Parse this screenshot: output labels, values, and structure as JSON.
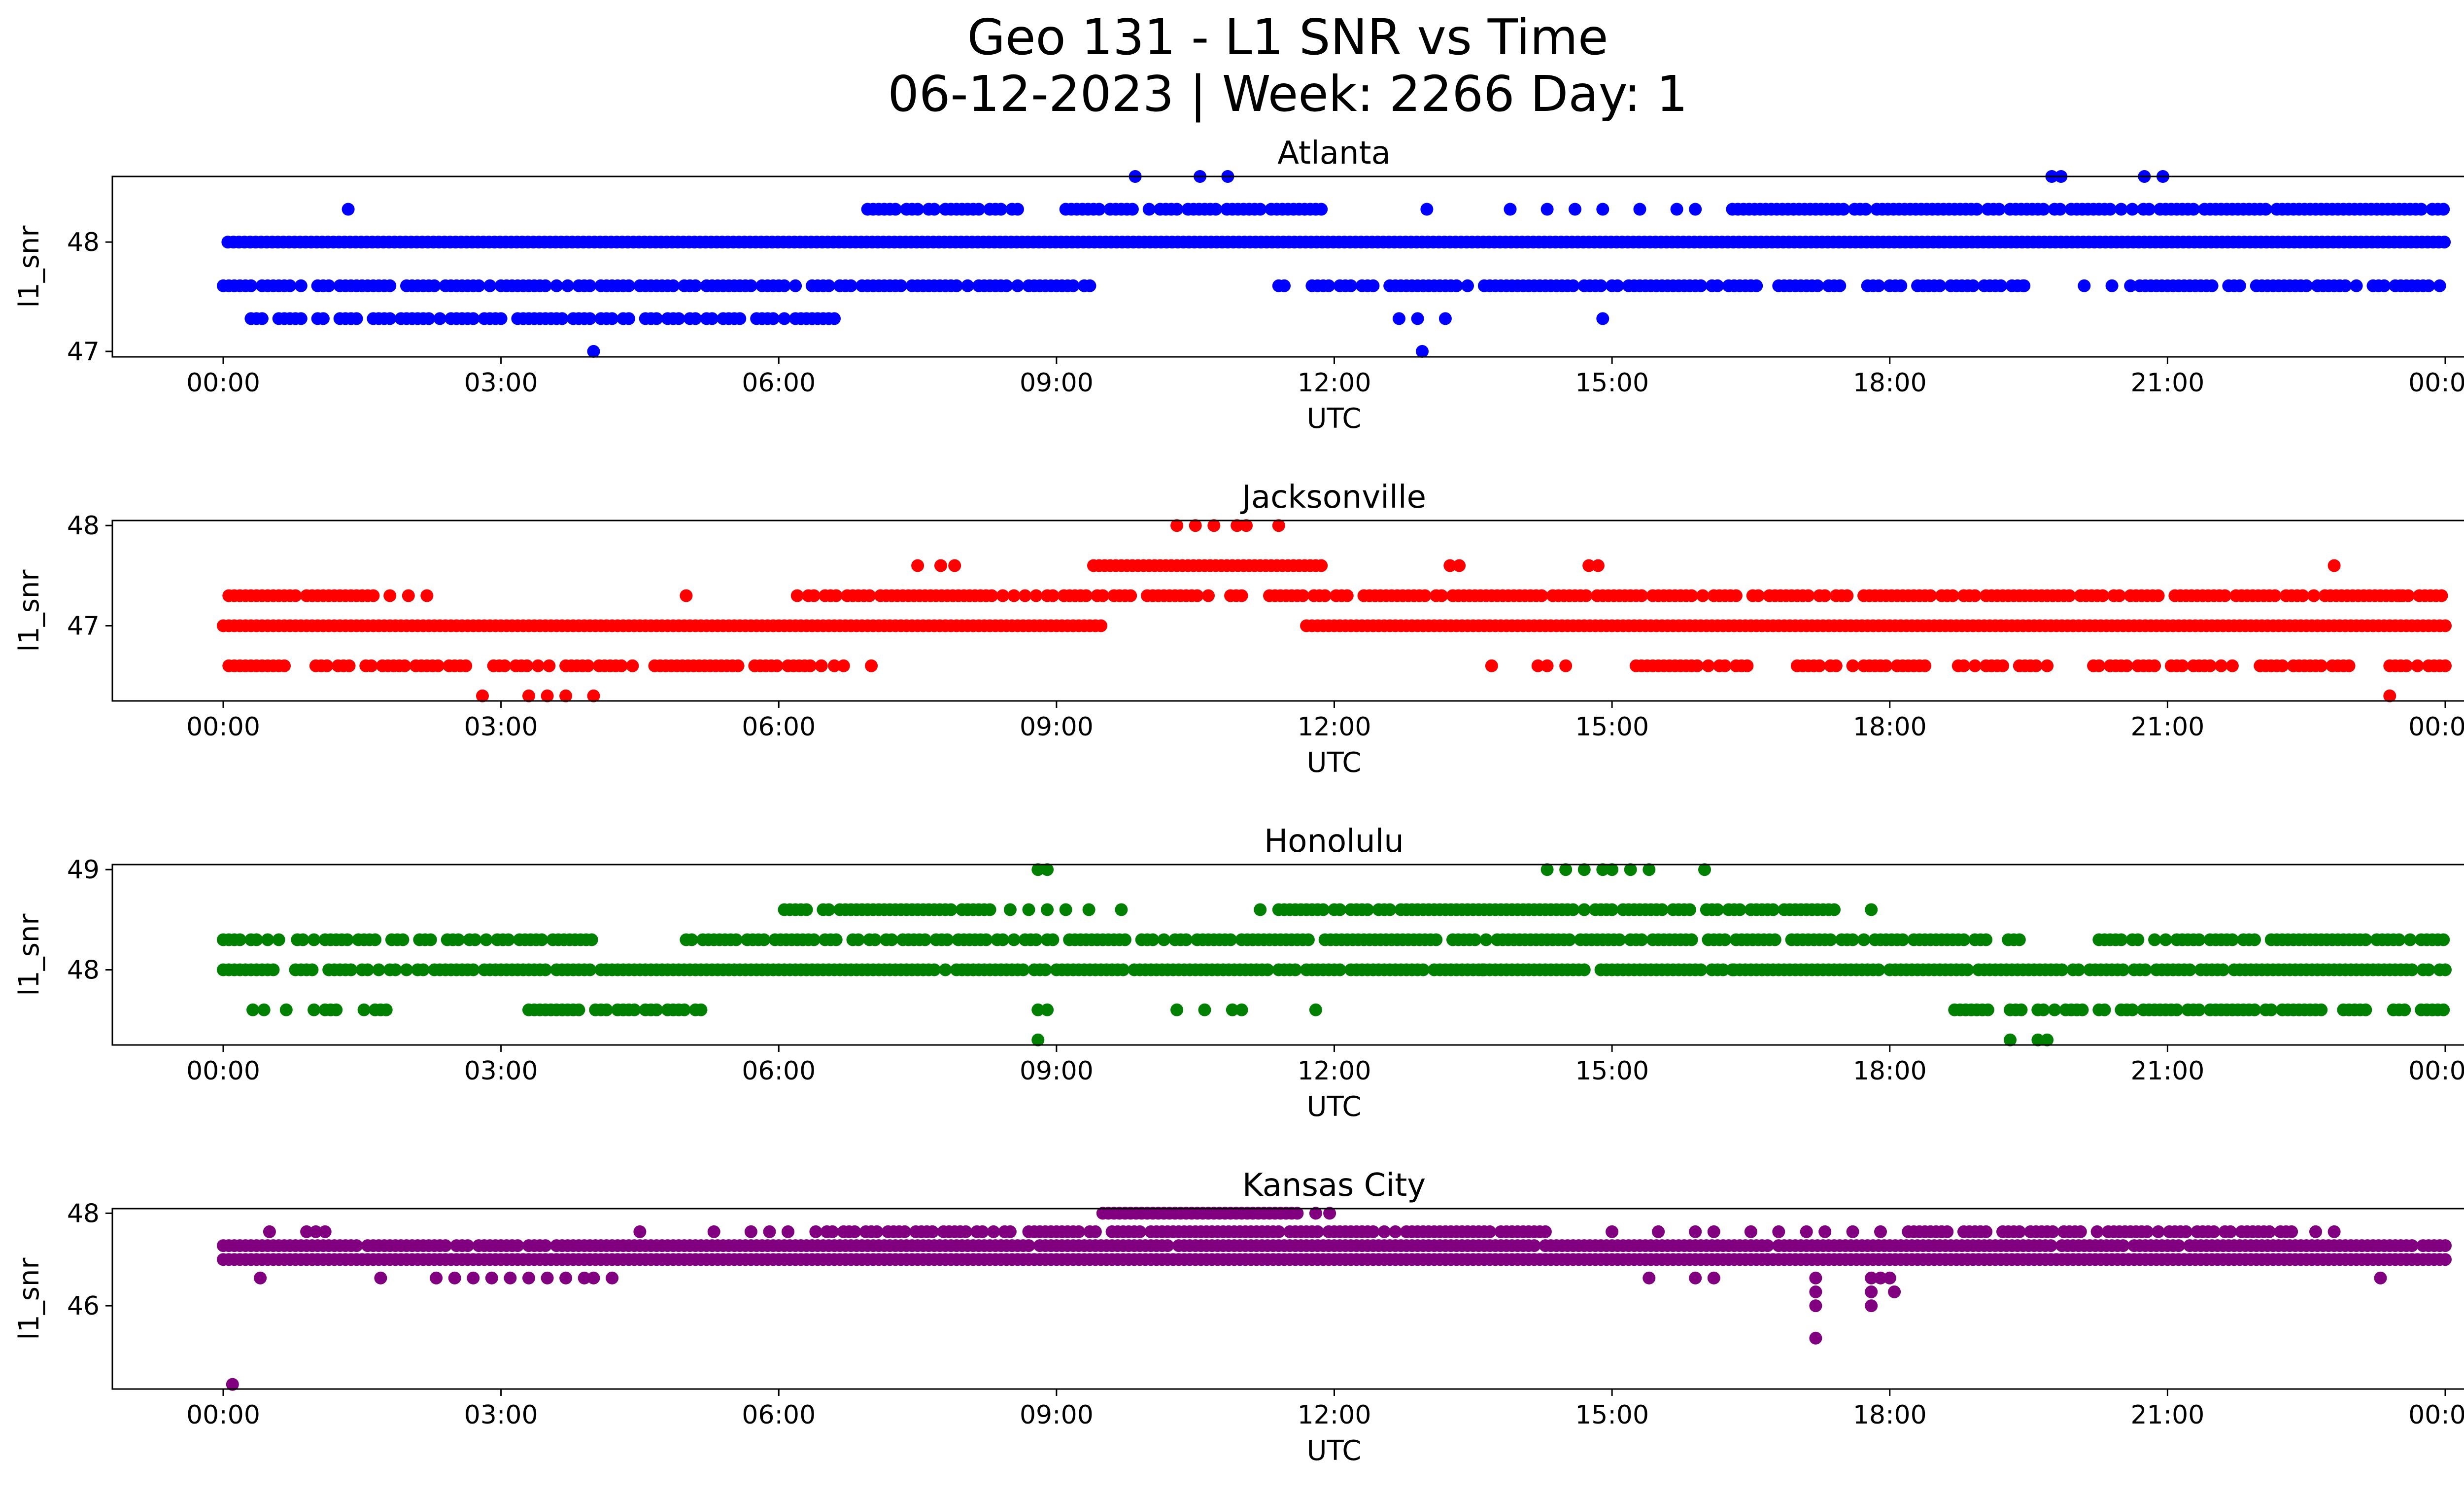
{
  "figure": {
    "title_line1": "Geo 131 - L1 SNR vs Time",
    "title_line2": "06-12-2023 | Week: 2266 Day: 1"
  },
  "chart_data": [
    {
      "type": "scatter",
      "title": "Atlanta",
      "xlabel": "UTC",
      "ylabel": "l1_snr",
      "color": "#0000ff",
      "xlim": [
        "23:55",
        "24:50"
      ],
      "ylim": [
        46.95,
        48.6
      ],
      "x_ticks": [
        "00:00",
        "03:00",
        "06:00",
        "09:00",
        "12:00",
        "15:00",
        "18:00",
        "21:00",
        "00:00"
      ],
      "y_ticks": [
        47,
        48
      ],
      "series": [
        {
          "name": "",
          "points": [
            [
              [
                0.0,
                24.0
              ],
              48.0
            ],
            [
              [
                0.4,
                11.3
              ],
              48.0
            ],
            [
              [
                11.3,
                24.0
              ],
              48.0
            ],
            [
              [
                0.0,
                9.5
              ],
              47.6
            ],
            [
              [
                9.5,
                9.5
              ],
              47.6
            ],
            [
              [
                11.4,
                19.6
              ],
              47.6
            ],
            [
              [
                20.6,
                24.0
              ],
              47.6
            ],
            [
              [
                6.9,
                8.5
              ],
              48.3
            ],
            [
              [
                9.1,
                11.8
              ],
              48.3
            ],
            [
              [
                16.3,
                24.0
              ],
              48.3
            ],
            [
              [
                0.0,
                6.8
              ],
              47.3
            ]
          ],
          "x": [
            "00:00",
            "00:30",
            "01:00",
            "01:20",
            "02:00",
            "02:30",
            "03:00",
            "03:30",
            "04:00",
            "04:30",
            "05:00",
            "05:30",
            "06:00",
            "06:30",
            "06:50",
            "07:00",
            "07:30",
            "08:00",
            "08:30",
            "09:00",
            "09:30",
            "09:50",
            "10:30",
            "10:50",
            "11:00",
            "11:30",
            "11:40",
            "12:00",
            "12:30",
            "12:45",
            "13:00",
            "13:00",
            "13:15",
            "13:20",
            "14:00",
            "14:20",
            "14:30",
            "14:55",
            "15:00",
            "15:10",
            "15:30",
            "16:00",
            "16:20",
            "16:40",
            "17:00",
            "17:30",
            "18:00",
            "18:30",
            "19:00",
            "19:15",
            "19:35",
            "19:45",
            "20:00",
            "20:20",
            "20:50",
            "21:00",
            "21:30",
            "22:00",
            "22:30",
            "23:00",
            "23:30",
            "24:00"
          ],
          "values": [
            48,
            48,
            47.3,
            48.3,
            47.3,
            47.3,
            48,
            47.3,
            47,
            47.3,
            48,
            47.3,
            48,
            47.3,
            48.3,
            48.3,
            48.3,
            48.3,
            48.3,
            48,
            48.3,
            48.6,
            48.6,
            48.6,
            48.3,
            48.3,
            47.6,
            47.6,
            47.6,
            47.3,
            47,
            48.3,
            47.3,
            47.3,
            48.3,
            48.3,
            48.3,
            47.3,
            48.3,
            48.3,
            48.3,
            48.3,
            48.3,
            48.3,
            48.3,
            48.3,
            48.3,
            48.3,
            48.3,
            47.6,
            48.6,
            48.6,
            48.3,
            47.6,
            48.6,
            48.6,
            48.3,
            48.3,
            48.3,
            48.3,
            48.3,
            48
          ]
        }
      ]
    },
    {
      "type": "scatter",
      "title": "Jacksonville",
      "xlabel": "UTC",
      "ylabel": "l1_snr",
      "color": "#ff0000",
      "ylim": [
        46.25,
        48.05
      ],
      "x_ticks": [
        "00:00",
        "03:00",
        "06:00",
        "09:00",
        "12:00",
        "15:00",
        "18:00",
        "21:00",
        "00:00"
      ],
      "y_ticks": [
        47,
        48
      ],
      "series": [
        {
          "name": "",
          "values": [
            47.0,
            47.3,
            46.6,
            46.3,
            47.6,
            48.0
          ]
        }
      ]
    },
    {
      "type": "scatter",
      "title": "Honolulu",
      "xlabel": "UTC",
      "ylabel": "l1_snr",
      "color": "#008000",
      "ylim": [
        47.25,
        49.05
      ],
      "x_ticks": [
        "00:00",
        "03:00",
        "06:00",
        "09:00",
        "12:00",
        "15:00",
        "18:00",
        "21:00",
        "00:00"
      ],
      "y_ticks": [
        48,
        49
      ],
      "series": [
        {
          "name": "",
          "values": [
            48.0,
            48.3,
            47.6,
            48.6,
            49.0,
            47.3
          ]
        }
      ]
    },
    {
      "type": "scatter",
      "title": "Kansas City",
      "xlabel": "UTC",
      "ylabel": "l1_snr",
      "color": "#800080",
      "ylim": [
        44.2,
        48.1
      ],
      "x_ticks": [
        "00:00",
        "03:00",
        "06:00",
        "09:00",
        "12:00",
        "15:00",
        "18:00",
        "21:00",
        "00:00"
      ],
      "y_ticks": [
        46,
        48
      ],
      "series": [
        {
          "name": "",
          "values": [
            47.0,
            47.3,
            47.6,
            48.0,
            46.6,
            46.3,
            46.0,
            45.3,
            44.3
          ]
        }
      ]
    }
  ]
}
